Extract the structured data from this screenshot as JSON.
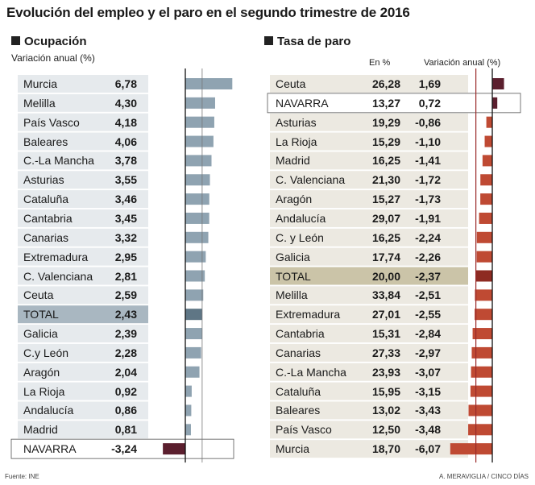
{
  "title": "Evolución del empleo y el paro en el segundo trimestre de 2016",
  "footer": {
    "source": "Fuente: INE",
    "credit": "A. MERAVIGLIA / CINCO DÍAS"
  },
  "colors": {
    "occ_bar": "#8fa3b1",
    "occ_total_bar": "#5f7685",
    "occ_stripe": "#e6eaed",
    "occ_total_stripe": "#a9b7c1",
    "occ_navarra_bar": "#5b1f2e",
    "unemp_bar": "#bf4a33",
    "unemp_total_bar": "#8e2b22",
    "unemp_pos_bar": "#5b1f2e",
    "unemp_stripe": "#ece9e1",
    "unemp_total_stripe": "#cbc4a8",
    "red_line": "#9a2b2b"
  },
  "chart_data": [
    {
      "type": "bar",
      "orientation": "horizontal",
      "title": "Ocupación",
      "xlabel": "Variación anual  (%)",
      "categories": [
        "Murcia",
        "Melilla",
        "País Vasco",
        "Baleares",
        "C.-La Mancha",
        "Asturias",
        "Cataluña",
        "Cantabria",
        "Canarias",
        "Extremadura",
        "C. Valenciana",
        "Ceuta",
        "TOTAL",
        "Galicia",
        "C.y León",
        "Aragón",
        "La Rioja",
        "Andalucía",
        "Madrid",
        "NAVARRA"
      ],
      "values": [
        6.78,
        4.3,
        4.18,
        4.06,
        3.78,
        3.55,
        3.46,
        3.45,
        3.32,
        2.95,
        2.81,
        2.59,
        2.43,
        2.39,
        2.28,
        2.04,
        0.92,
        0.86,
        0.81,
        -3.24
      ],
      "labels": [
        "6,78",
        "4,30",
        "4,18",
        "4,06",
        "3,78",
        "3,55",
        "3,46",
        "3,45",
        "3,32",
        "2,95",
        "2,81",
        "2,59",
        "2,43",
        "2,39",
        "2,28",
        "2,04",
        "0,92",
        "0,86",
        "0,81",
        "-3,24"
      ],
      "reference_value": 2.43,
      "highlight": [
        "TOTAL",
        "NAVARRA"
      ],
      "xlim": [
        -3.5,
        7
      ]
    },
    {
      "type": "bar",
      "orientation": "horizontal",
      "title": "Tasa de paro",
      "col_rate_label": "En %",
      "xlabel": "Variación anual (%)",
      "categories": [
        "Ceuta",
        "NAVARRA",
        "Asturias",
        "La Rioja",
        "Madrid",
        "C. Valenciana",
        "Aragón",
        "Andalucía",
        "C. y León",
        "Galicia",
        "TOTAL",
        "Melilla",
        "Extremadura",
        "Cantabria",
        "Canarias",
        "C.-La Mancha",
        "Cataluña",
        "Baleares",
        "País Vasco",
        "Murcia"
      ],
      "rates": [
        "26,28",
        "13,27",
        "19,29",
        "15,29",
        "16,25",
        "21,30",
        "15,27",
        "29,07",
        "16,25",
        "17,74",
        "20,00",
        "33,84",
        "27,01",
        "15,31",
        "27,33",
        "23,93",
        "15,95",
        "13,02",
        "12,50",
        "18,70"
      ],
      "values": [
        1.69,
        0.72,
        -0.86,
        -1.1,
        -1.41,
        -1.72,
        -1.73,
        -1.91,
        -2.24,
        -2.26,
        -2.37,
        -2.51,
        -2.55,
        -2.84,
        -2.97,
        -3.07,
        -3.15,
        -3.43,
        -3.48,
        -6.07
      ],
      "labels": [
        "1,69",
        "0,72",
        "-0,86",
        "-1,10",
        "-1,41",
        "-1,72",
        "-1,73",
        "-1,91",
        "-2,24",
        "-2,26",
        "-2,37",
        "-2,51",
        "-2,55",
        "-2,84",
        "-2,97",
        "-3,07",
        "-3,15",
        "-3,43",
        "-3,48",
        "-6,07"
      ],
      "reference_value": -2.37,
      "highlight": [
        "TOTAL",
        "NAVARRA"
      ],
      "xlim": [
        -7,
        2
      ]
    }
  ]
}
